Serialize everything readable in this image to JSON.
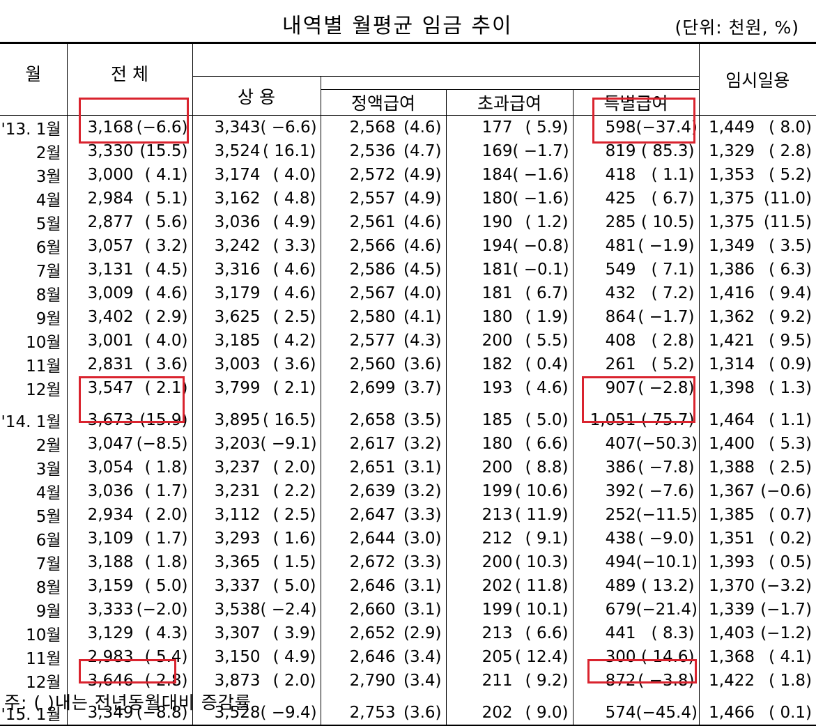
{
  "title": "내역별 월평균 임금 추이",
  "unit": "(단위: 천원, %)",
  "headers": {
    "month": "월",
    "total": "전 체",
    "regular": "상 용",
    "fixed": "정액급여",
    "overtime": "초과급여",
    "special": "특별급여",
    "temporary": "임시일용"
  },
  "rows": [
    {
      "m": "'13. 1월",
      "t": [
        "3,168",
        "(−6.6)"
      ],
      "r": [
        "3,343",
        "( −6.6)"
      ],
      "f": [
        "2,568",
        "(4.6)"
      ],
      "o": [
        "177",
        "( 5.9)"
      ],
      "s": [
        "598",
        "(−37.4)"
      ],
      "d": [
        "1,449",
        "( 8.0)"
      ]
    },
    {
      "m": "2월",
      "t": [
        "3,330",
        "(15.5)"
      ],
      "r": [
        "3,524",
        "( 16.1)"
      ],
      "f": [
        "2,536",
        "(4.7)"
      ],
      "o": [
        "169",
        "( −1.7)"
      ],
      "s": [
        "819",
        "( 85.3)"
      ],
      "d": [
        "1,329",
        "( 2.8)"
      ]
    },
    {
      "m": "3월",
      "t": [
        "3,000",
        "( 4.1)"
      ],
      "r": [
        "3,174",
        "( 4.0)"
      ],
      "f": [
        "2,572",
        "(4.9)"
      ],
      "o": [
        "184",
        "( −1.6)"
      ],
      "s": [
        "418",
        "( 1.1)"
      ],
      "d": [
        "1,353",
        "( 5.2)"
      ]
    },
    {
      "m": "4월",
      "t": [
        "2,984",
        "( 5.1)"
      ],
      "r": [
        "3,162",
        "( 4.8)"
      ],
      "f": [
        "2,557",
        "(4.9)"
      ],
      "o": [
        "180",
        "( −1.6)"
      ],
      "s": [
        "425",
        "( 6.7)"
      ],
      "d": [
        "1,375",
        "(11.0)"
      ]
    },
    {
      "m": "5월",
      "t": [
        "2,877",
        "( 5.6)"
      ],
      "r": [
        "3,036",
        "( 4.9)"
      ],
      "f": [
        "2,561",
        "(4.6)"
      ],
      "o": [
        "190",
        "( 1.2)"
      ],
      "s": [
        "285",
        "( 10.5)"
      ],
      "d": [
        "1,375",
        "(11.5)"
      ]
    },
    {
      "m": "6월",
      "t": [
        "3,057",
        "( 3.2)"
      ],
      "r": [
        "3,242",
        "( 3.3)"
      ],
      "f": [
        "2,566",
        "(4.6)"
      ],
      "o": [
        "194",
        "( −0.8)"
      ],
      "s": [
        "481",
        "( −1.9)"
      ],
      "d": [
        "1,349",
        "( 3.5)"
      ]
    },
    {
      "m": "7월",
      "t": [
        "3,131",
        "( 4.5)"
      ],
      "r": [
        "3,316",
        "( 4.6)"
      ],
      "f": [
        "2,586",
        "(4.5)"
      ],
      "o": [
        "181",
        "( −0.1)"
      ],
      "s": [
        "549",
        "( 7.1)"
      ],
      "d": [
        "1,386",
        "( 6.3)"
      ]
    },
    {
      "m": "8월",
      "t": [
        "3,009",
        "( 4.6)"
      ],
      "r": [
        "3,179",
        "( 4.6)"
      ],
      "f": [
        "2,567",
        "(4.0)"
      ],
      "o": [
        "181",
        "( 6.7)"
      ],
      "s": [
        "432",
        "( 7.2)"
      ],
      "d": [
        "1,416",
        "( 9.4)"
      ]
    },
    {
      "m": "9월",
      "t": [
        "3,402",
        "( 2.9)"
      ],
      "r": [
        "3,625",
        "( 2.5)"
      ],
      "f": [
        "2,580",
        "(4.1)"
      ],
      "o": [
        "180",
        "( 1.9)"
      ],
      "s": [
        "864",
        "( −1.7)"
      ],
      "d": [
        "1,362",
        "( 9.2)"
      ]
    },
    {
      "m": "10월",
      "t": [
        "3,001",
        "( 4.0)"
      ],
      "r": [
        "3,185",
        "( 4.2)"
      ],
      "f": [
        "2,577",
        "(4.3)"
      ],
      "o": [
        "200",
        "( 5.5)"
      ],
      "s": [
        "408",
        "( 2.8)"
      ],
      "d": [
        "1,421",
        "( 9.5)"
      ]
    },
    {
      "m": "11월",
      "t": [
        "2,831",
        "( 3.6)"
      ],
      "r": [
        "3,003",
        "( 3.6)"
      ],
      "f": [
        "2,560",
        "(3.6)"
      ],
      "o": [
        "182",
        "( 0.4)"
      ],
      "s": [
        "261",
        "( 5.2)"
      ],
      "d": [
        "1,314",
        "( 0.9)"
      ]
    },
    {
      "m": "12월",
      "t": [
        "3,547",
        "( 2.1)"
      ],
      "r": [
        "3,799",
        "( 2.1)"
      ],
      "f": [
        "2,699",
        "(3.7)"
      ],
      "o": [
        "193",
        "( 4.6)"
      ],
      "s": [
        "907",
        "( −2.8)"
      ],
      "d": [
        "1,398",
        "( 1.3)"
      ]
    },
    {
      "gap": true
    },
    {
      "m": "'14. 1월",
      "t": [
        "3,673",
        "(15.9)"
      ],
      "r": [
        "3,895",
        "( 16.5)"
      ],
      "f": [
        "2,658",
        "(3.5)"
      ],
      "o": [
        "185",
        "( 5.0)"
      ],
      "s": [
        "1,051",
        "( 75.7)"
      ],
      "d": [
        "1,464",
        "( 1.1)"
      ]
    },
    {
      "m": "2월",
      "t": [
        "3,047",
        "(−8.5)"
      ],
      "r": [
        "3,203",
        "( −9.1)"
      ],
      "f": [
        "2,617",
        "(3.2)"
      ],
      "o": [
        "180",
        "( 6.6)"
      ],
      "s": [
        "407",
        "(−50.3)"
      ],
      "d": [
        "1,400",
        "( 5.3)"
      ]
    },
    {
      "m": "3월",
      "t": [
        "3,054",
        "( 1.8)"
      ],
      "r": [
        "3,237",
        "( 2.0)"
      ],
      "f": [
        "2,651",
        "(3.1)"
      ],
      "o": [
        "200",
        "( 8.8)"
      ],
      "s": [
        "386",
        "( −7.8)"
      ],
      "d": [
        "1,388",
        "( 2.5)"
      ]
    },
    {
      "m": "4월",
      "t": [
        "3,036",
        "( 1.7)"
      ],
      "r": [
        "3,231",
        "( 2.2)"
      ],
      "f": [
        "2,639",
        "(3.2)"
      ],
      "o": [
        "199",
        "( 10.6)"
      ],
      "s": [
        "392",
        "( −7.6)"
      ],
      "d": [
        "1,367",
        "(−0.6)"
      ]
    },
    {
      "m": "5월",
      "t": [
        "2,934",
        "( 2.0)"
      ],
      "r": [
        "3,112",
        "( 2.5)"
      ],
      "f": [
        "2,647",
        "(3.3)"
      ],
      "o": [
        "213",
        "( 11.9)"
      ],
      "s": [
        "252",
        "(−11.5)"
      ],
      "d": [
        "1,385",
        "( 0.7)"
      ]
    },
    {
      "m": "6월",
      "t": [
        "3,109",
        "( 1.7)"
      ],
      "r": [
        "3,293",
        "( 1.6)"
      ],
      "f": [
        "2,644",
        "(3.0)"
      ],
      "o": [
        "212",
        "( 9.1)"
      ],
      "s": [
        "438",
        "( −9.0)"
      ],
      "d": [
        "1,351",
        "( 0.2)"
      ]
    },
    {
      "m": "7월",
      "t": [
        "3,188",
        "( 1.8)"
      ],
      "r": [
        "3,365",
        "( 1.5)"
      ],
      "f": [
        "2,672",
        "(3.3)"
      ],
      "o": [
        "200",
        "( 10.3)"
      ],
      "s": [
        "494",
        "(−10.1)"
      ],
      "d": [
        "1,393",
        "( 0.5)"
      ]
    },
    {
      "m": "8월",
      "t": [
        "3,159",
        "( 5.0)"
      ],
      "r": [
        "3,337",
        "( 5.0)"
      ],
      "f": [
        "2,646",
        "(3.1)"
      ],
      "o": [
        "202",
        "( 11.8)"
      ],
      "s": [
        "489",
        "( 13.2)"
      ],
      "d": [
        "1,370",
        "(−3.2)"
      ]
    },
    {
      "m": "9월",
      "t": [
        "3,333",
        "(−2.0)"
      ],
      "r": [
        "3,538",
        "( −2.4)"
      ],
      "f": [
        "2,660",
        "(3.1)"
      ],
      "o": [
        "199",
        "( 10.1)"
      ],
      "s": [
        "679",
        "(−21.4)"
      ],
      "d": [
        "1,339",
        "(−1.7)"
      ]
    },
    {
      "m": "10월",
      "t": [
        "3,129",
        "( 4.3)"
      ],
      "r": [
        "3,307",
        "( 3.9)"
      ],
      "f": [
        "2,652",
        "(2.9)"
      ],
      "o": [
        "213",
        "( 6.6)"
      ],
      "s": [
        "441",
        "( 8.3)"
      ],
      "d": [
        "1,403",
        "(−1.2)"
      ]
    },
    {
      "m": "11월",
      "t": [
        "2,983",
        "( 5.4)"
      ],
      "r": [
        "3,150",
        "( 4.9)"
      ],
      "f": [
        "2,646",
        "(3.4)"
      ],
      "o": [
        "205",
        "( 12.4)"
      ],
      "s": [
        "300",
        "( 14.6)"
      ],
      "d": [
        "1,368",
        "( 4.1)"
      ]
    },
    {
      "m": "12월",
      "t": [
        "3,646",
        "( 2.8)"
      ],
      "r": [
        "3,873",
        "( 2.0)"
      ],
      "f": [
        "2,790",
        "(3.4)"
      ],
      "o": [
        "211",
        "( 9.2)"
      ],
      "s": [
        "872",
        "( −3.8)"
      ],
      "d": [
        "1,422",
        "( 1.8)"
      ]
    },
    {
      "gap": true
    },
    {
      "m": "'15. 1월",
      "t": [
        "3,349",
        "(−8.8)"
      ],
      "r": [
        "3,528",
        "( −9.4)"
      ],
      "f": [
        "2,753",
        "(3.6)"
      ],
      "o": [
        "202",
        "( 9.0)"
      ],
      "s": [
        "574",
        "(−45.4)"
      ],
      "d": [
        "1,466",
        "( 0.1)"
      ]
    }
  ],
  "note": "주: (   )내는 전년동월대비 증감률",
  "highlight_color": "#d9232e"
}
